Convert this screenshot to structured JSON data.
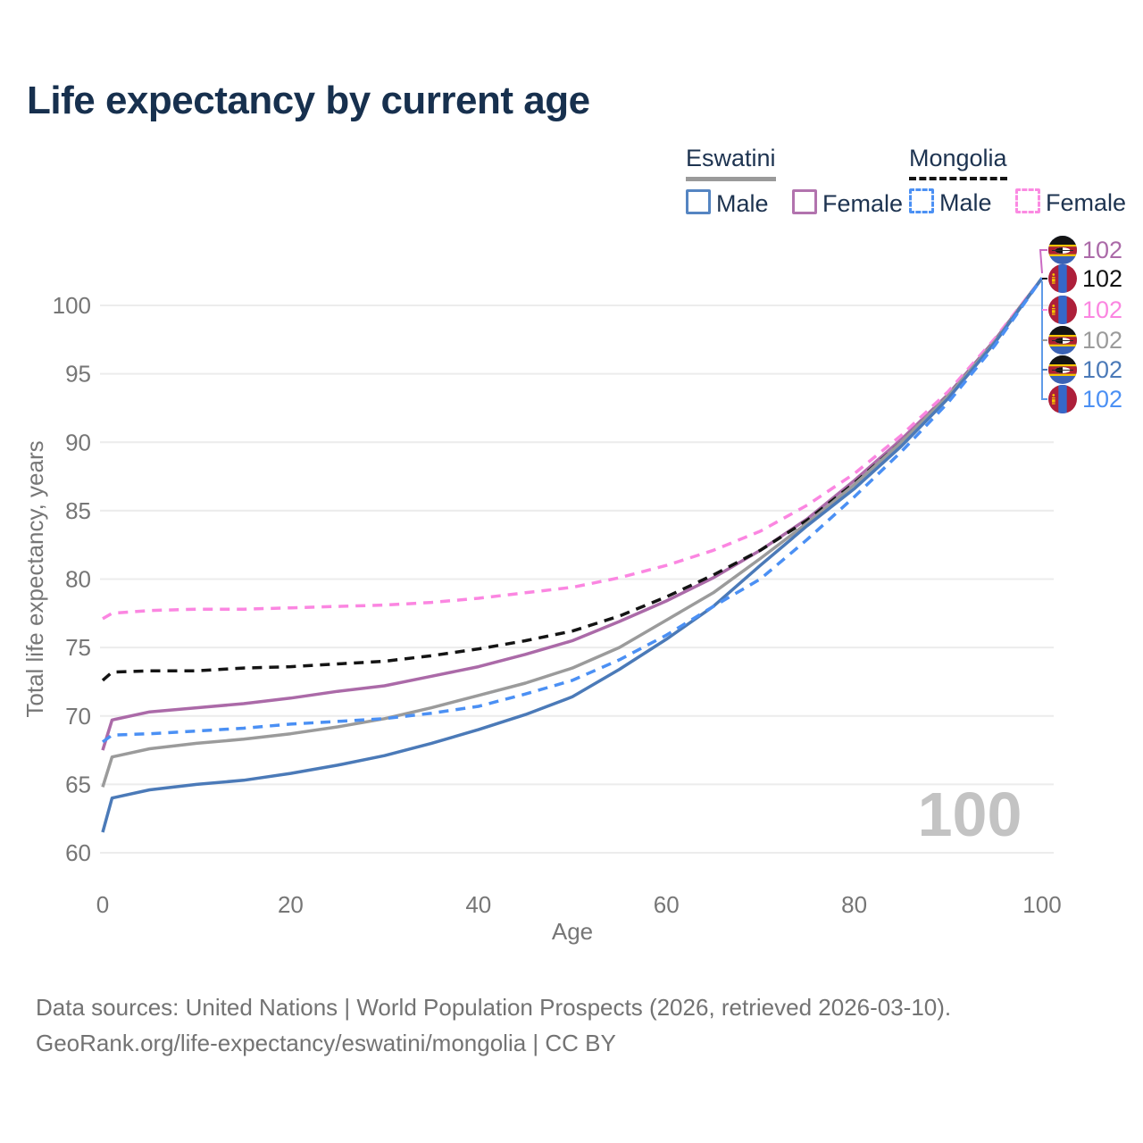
{
  "title": "Life expectancy by current age",
  "legend": {
    "groups": [
      {
        "country": "Eswatini",
        "underline_style": "solid",
        "underline_color": "#9a9a9a",
        "items": [
          {
            "label": "Male",
            "color": "#5585c2",
            "line_style": "solid"
          },
          {
            "label": "Female",
            "color": "#b273ae",
            "line_style": "solid"
          }
        ]
      },
      {
        "country": "Mongolia",
        "underline_style": "dashed",
        "underline_color": "#141414",
        "items": [
          {
            "label": "Male",
            "color": "#4b90f4",
            "line_style": "dashed"
          },
          {
            "label": "Female",
            "color": "#fb8ae2",
            "line_style": "dashed"
          }
        ]
      }
    ]
  },
  "chart_data": {
    "type": "line",
    "title": "Life expectancy by current age",
    "xlabel": "Age",
    "ylabel": "Total life expectancy, years",
    "xticks": [
      0,
      20,
      40,
      60,
      80,
      100
    ],
    "yticks": [
      60,
      65,
      70,
      75,
      80,
      85,
      90,
      95,
      100
    ],
    "xlim": [
      0,
      100
    ],
    "ylim": [
      60,
      103
    ],
    "grid": "horizontal",
    "age_indicator": "100",
    "x": [
      0,
      1,
      5,
      10,
      15,
      20,
      25,
      30,
      35,
      40,
      45,
      50,
      55,
      60,
      65,
      70,
      75,
      80,
      85,
      90,
      95,
      100
    ],
    "series": [
      {
        "name": "Eswatini Female",
        "country": "Eswatini",
        "sex": "Female",
        "line_style": "solid",
        "color": "#ab6aa8",
        "flag": "eswatini",
        "end_label": "102",
        "values": [
          67.5,
          69.7,
          70.3,
          70.6,
          70.9,
          71.3,
          71.8,
          72.2,
          72.9,
          73.6,
          74.5,
          75.5,
          76.9,
          78.4,
          80.1,
          82.1,
          84.4,
          87.2,
          90.2,
          93.5,
          97.5,
          102
        ]
      },
      {
        "name": "Mongolia Total",
        "country": "Mongolia",
        "sex": "Total",
        "line_style": "dashed",
        "color": "#141414",
        "flag": "mongolia",
        "end_label": "102",
        "values": [
          72.6,
          73.2,
          73.3,
          73.3,
          73.5,
          73.6,
          73.8,
          74.0,
          74.4,
          74.9,
          75.5,
          76.2,
          77.3,
          78.7,
          80.3,
          82.1,
          84.3,
          87.0,
          90.0,
          93.4,
          97.4,
          102
        ]
      },
      {
        "name": "Mongolia Female",
        "country": "Mongolia",
        "sex": "Female",
        "line_style": "dashed",
        "color": "#fb86e1",
        "flag": "mongolia",
        "end_label": "102",
        "values": [
          77.1,
          77.5,
          77.7,
          77.8,
          77.8,
          77.9,
          78.0,
          78.1,
          78.3,
          78.6,
          79.0,
          79.4,
          80.1,
          81.0,
          82.1,
          83.5,
          85.4,
          87.7,
          90.5,
          93.7,
          97.6,
          102
        ]
      },
      {
        "name": "Eswatini Total",
        "country": "Eswatini",
        "sex": "Total",
        "line_style": "solid",
        "color": "#9b9b9b",
        "flag": "eswatini",
        "end_label": "102",
        "values": [
          64.8,
          67.0,
          67.6,
          68.0,
          68.3,
          68.7,
          69.2,
          69.8,
          70.6,
          71.5,
          72.4,
          73.5,
          75.0,
          77.0,
          79.0,
          81.5,
          84.1,
          86.9,
          90.0,
          93.4,
          97.4,
          102
        ]
      },
      {
        "name": "Eswatini Male",
        "country": "Eswatini",
        "sex": "Male",
        "line_style": "solid",
        "color": "#4b7ab8",
        "flag": "eswatini",
        "end_label": "102",
        "values": [
          61.5,
          64.0,
          64.6,
          65.0,
          65.3,
          65.8,
          66.4,
          67.1,
          68.0,
          69.0,
          70.1,
          71.4,
          73.4,
          75.6,
          78.0,
          81.0,
          83.9,
          86.6,
          89.7,
          93.2,
          97.3,
          102
        ]
      },
      {
        "name": "Mongolia Male",
        "country": "Mongolia",
        "sex": "Male",
        "line_style": "dashed",
        "color": "#4b90f4",
        "flag": "mongolia",
        "end_label": "102",
        "values": [
          68.1,
          68.6,
          68.7,
          68.9,
          69.1,
          69.4,
          69.6,
          69.8,
          70.2,
          70.7,
          71.6,
          72.6,
          74.1,
          75.9,
          78.0,
          80.0,
          82.9,
          86.0,
          89.3,
          92.9,
          97.1,
          102
        ]
      }
    ]
  },
  "footer": {
    "line1": "Data sources: United Nations | World Population Prospects (2026, retrieved 2026-03-10).",
    "line2": "GeoRank.org/life-expectancy/eswatini/mongolia | CC BY"
  }
}
